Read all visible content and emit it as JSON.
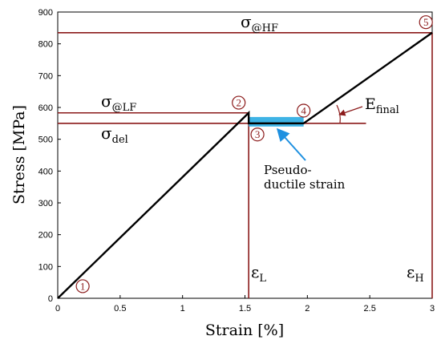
{
  "chart_data": {
    "type": "line",
    "xlabel": "Strain [%]",
    "ylabel": "Stress [MPa]",
    "xlim": [
      0,
      3
    ],
    "ylim": [
      0,
      900
    ],
    "xticks": [
      0,
      0.5,
      1,
      1.5,
      2,
      2.5,
      3
    ],
    "xtick_labels": [
      "0",
      "0.5",
      "1",
      "1.5",
      "2",
      "2.5",
      "3"
    ],
    "yticks": [
      0,
      100,
      200,
      300,
      400,
      500,
      600,
      700,
      800,
      900
    ],
    "ytick_labels": [
      "0",
      "100",
      "200",
      "300",
      "400",
      "500",
      "600",
      "700",
      "800",
      "900"
    ],
    "series": [
      {
        "x": [
          0,
          1.53,
          1.53,
          1.97,
          3.0
        ],
        "y": [
          0,
          583,
          550,
          550,
          835
        ],
        "color": "#000000"
      }
    ],
    "reference_lines": [
      {
        "orientation": "horizontal",
        "value": 835,
        "x_end": 3.0,
        "color": "#8B1A1A"
      },
      {
        "orientation": "horizontal",
        "value": 583,
        "x_end": 1.53,
        "color": "#8B1A1A"
      },
      {
        "orientation": "horizontal",
        "value": 550,
        "x_end": 2.47,
        "color": "#8B1A1A"
      },
      {
        "orientation": "vertical",
        "value": 1.53,
        "y_end": 583,
        "color": "#8B1A1A"
      },
      {
        "orientation": "vertical",
        "value": 3.0,
        "y_end": 835,
        "color": "#8B1A1A"
      }
    ],
    "highlight_band": {
      "x": [
        1.53,
        1.97
      ],
      "y": [
        540,
        570
      ],
      "color": "#29ABE2"
    },
    "point_markers": [
      {
        "label": "1",
        "x": 0.2,
        "y": 38
      },
      {
        "label": "2",
        "x": 1.45,
        "y": 615
      },
      {
        "label": "3",
        "x": 1.6,
        "y": 515
      },
      {
        "label": "4",
        "x": 1.97,
        "y": 590
      },
      {
        "label": "5",
        "x": 2.95,
        "y": 868
      }
    ],
    "annotations": {
      "sigma_hf": {
        "base": "σ",
        "sub": "@HF"
      },
      "sigma_lf": {
        "base": "σ",
        "sub": "@LF"
      },
      "sigma_del": {
        "base": "σ",
        "sub": "del"
      },
      "eps_l": {
        "base": "ε",
        "sub": "L"
      },
      "eps_h": {
        "base": "ε",
        "sub": "H"
      },
      "e_final": {
        "base": "E",
        "sub": "final"
      },
      "pseudo_line1": "Pseudo-",
      "pseudo_line2": "ductile strain"
    },
    "colors": {
      "curve": "#000000",
      "reference": "#8B1A1A",
      "band": "#29ABE2",
      "arrow": "#1E90E0"
    }
  }
}
